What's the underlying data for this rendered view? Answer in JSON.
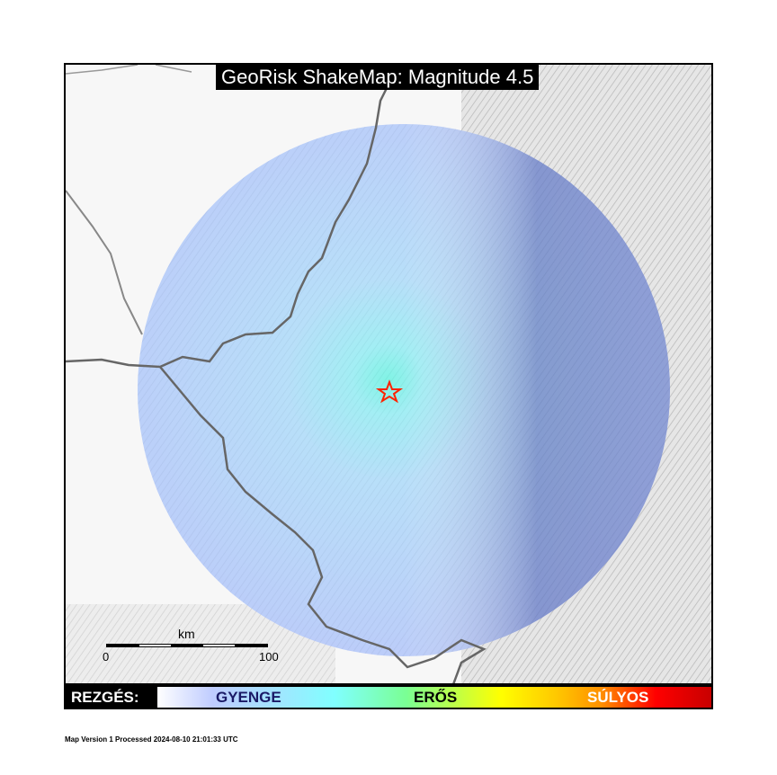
{
  "title": "GeoRisk ShakeMap: Magnitude 4.5",
  "scale_bar": {
    "unit": "km",
    "min_label": "0",
    "max_label": "100"
  },
  "legend": {
    "label": "REZGÉS:",
    "levels": [
      {
        "text": "GYENGE",
        "color": "#1a1a66"
      },
      {
        "text": "ERŐS",
        "color": "#000000"
      },
      {
        "text": "SÚLYOS",
        "color": "#ffffff"
      }
    ]
  },
  "footer": "Map Version 1 Processed 2024-08-10 21:01:33 UTC",
  "epicenter": {
    "icon": "star-icon",
    "color": "#ff2200"
  },
  "colors": {
    "shaking_light": "#a9c4ff",
    "shaking_core": "#7fffee",
    "border": "#666666"
  }
}
